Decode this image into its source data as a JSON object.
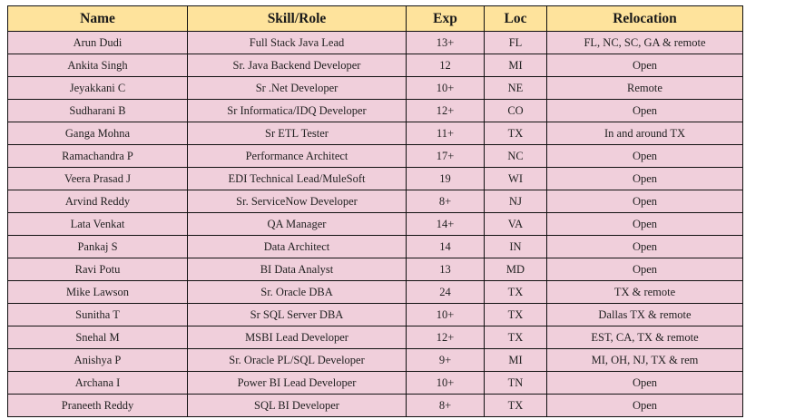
{
  "table": {
    "colors": {
      "header_bg": "#fee39c",
      "row_bg": "#f0cfdb",
      "border": "#111111"
    },
    "headers": [
      "Name",
      "Skill/Role",
      "Exp",
      "Loc",
      "Relocation"
    ],
    "rows": [
      [
        "Arun Dudi",
        "Full Stack Java Lead",
        "13+",
        "FL",
        "FL, NC, SC, GA & remote"
      ],
      [
        "Ankita Singh",
        "Sr. Java Backend Developer",
        "12",
        "MI",
        "Open"
      ],
      [
        "Jeyakkani C",
        "Sr .Net Developer",
        "10+",
        "NE",
        "Remote"
      ],
      [
        "Sudharani B",
        "Sr Informatica/IDQ Developer",
        "12+",
        "CO",
        "Open"
      ],
      [
        "Ganga Mohna",
        "Sr ETL Tester",
        "11+",
        "TX",
        "In and around TX"
      ],
      [
        "Ramachandra P",
        "Performance Architect",
        "17+",
        "NC",
        "Open"
      ],
      [
        "Veera Prasad J",
        "EDI Technical Lead/MuleSoft",
        "19",
        "WI",
        "Open"
      ],
      [
        "Arvind Reddy",
        "Sr. ServiceNow Developer",
        "8+",
        "NJ",
        "Open"
      ],
      [
        "Lata Venkat",
        "QA Manager",
        "14+",
        "VA",
        "Open"
      ],
      [
        "Pankaj S",
        "Data Architect",
        "14",
        "IN",
        "Open"
      ],
      [
        "Ravi Potu",
        "BI Data Analyst",
        "13",
        "MD",
        "Open"
      ],
      [
        "Mike Lawson",
        "Sr. Oracle DBA",
        "24",
        "TX",
        "TX & remote"
      ],
      [
        "Sunitha T",
        "Sr SQL Server DBA",
        "10+",
        "TX",
        "Dallas TX & remote"
      ],
      [
        "Snehal M",
        "MSBI Lead Developer",
        "12+",
        "TX",
        "EST, CA, TX & remote"
      ],
      [
        "Anishya P",
        "Sr. Oracle PL/SQL Developer",
        "9+",
        "MI",
        "MI, OH, NJ, TX & rem"
      ],
      [
        "Archana I",
        "Power BI Lead Developer",
        "10+",
        "TN",
        "Open"
      ],
      [
        "Praneeth Reddy",
        "SQL BI Developer",
        "8+",
        "TX",
        "Open"
      ]
    ]
  }
}
